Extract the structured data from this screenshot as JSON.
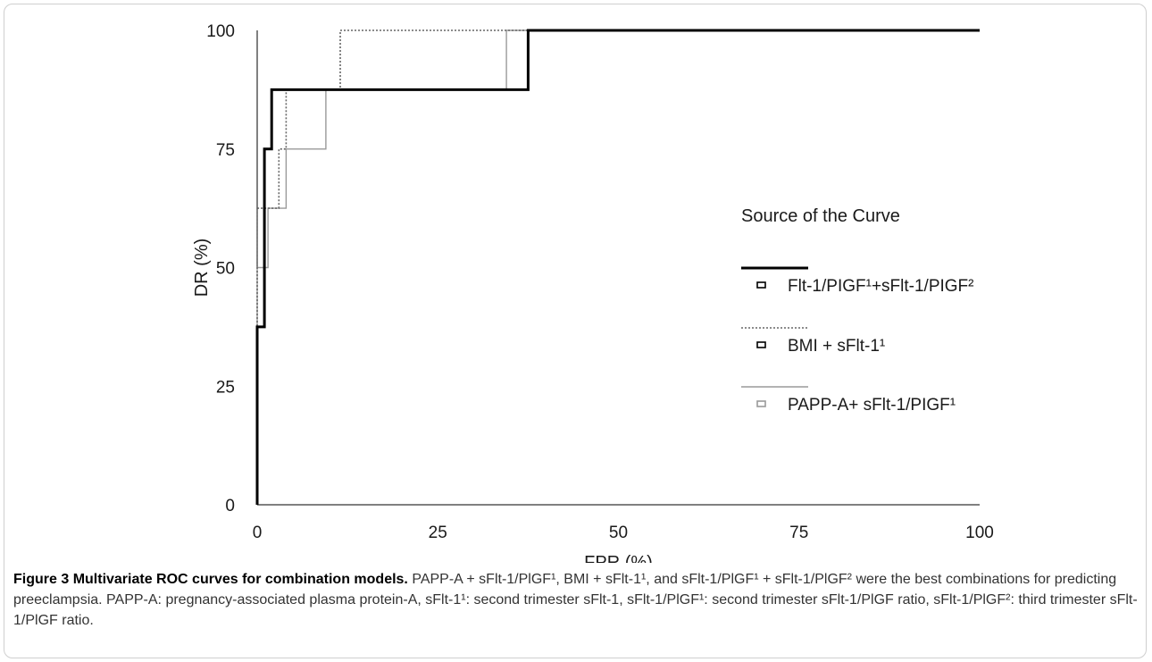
{
  "chart_data": {
    "type": "line",
    "xlabel": "FPR (%)",
    "ylabel": "DR (%)",
    "xlim": [
      0,
      100
    ],
    "ylim": [
      0,
      100
    ],
    "x_ticks": [
      "0",
      "25",
      "50",
      "75",
      "100"
    ],
    "y_ticks": [
      "0",
      "25",
      "50",
      "75",
      "100"
    ],
    "grid": false,
    "legend_title": "Source of the Curve",
    "legend_position": "right",
    "series": [
      {
        "name": "Flt-1/PIGF¹+sFlt-1/PIGF²",
        "color": "#000000",
        "line_style": "solid-thick",
        "points": [
          [
            0,
            0
          ],
          [
            0,
            37.5
          ],
          [
            1,
            37.5
          ],
          [
            1,
            75
          ],
          [
            2,
            75
          ],
          [
            2,
            87.5
          ],
          [
            37.5,
            87.5
          ],
          [
            37.5,
            100
          ],
          [
            100,
            100
          ]
        ]
      },
      {
        "name": "BMI + sFlt-1¹",
        "color": "#666666",
        "line_style": "dotted",
        "points": [
          [
            0,
            0
          ],
          [
            0,
            62.5
          ],
          [
            3,
            62.5
          ],
          [
            3,
            75
          ],
          [
            4,
            75
          ],
          [
            4,
            87.5
          ],
          [
            11.5,
            87.5
          ],
          [
            11.5,
            100
          ],
          [
            100,
            100
          ]
        ]
      },
      {
        "name": "PAPP-A+ sFlt-1/PIGF¹",
        "color": "#9a9a9a",
        "line_style": "solid-thin",
        "points": [
          [
            0,
            0
          ],
          [
            0,
            50
          ],
          [
            1.5,
            50
          ],
          [
            1.5,
            62.5
          ],
          [
            4,
            62.5
          ],
          [
            4,
            75
          ],
          [
            9.5,
            75
          ],
          [
            9.5,
            87.5
          ],
          [
            34.5,
            87.5
          ],
          [
            34.5,
            100
          ],
          [
            100,
            100
          ]
        ]
      }
    ]
  },
  "caption": {
    "figure_label": "Figure 3",
    "title": "Multivariate ROC curves for combination models.",
    "text": "PAPP-A + sFlt-1/PlGF¹, BMI + sFlt-1¹, and sFlt-1/PlGF¹ + sFlt-1/PlGF² were the best combinations for predicting preeclampsia. PAPP-A: pregnancy-associated plasma protein-A, sFlt-1¹: second trimester sFlt-1, sFlt-1/PlGF¹: second trimester sFlt-1/PlGF ratio, sFlt-1/PlGF²: third trimester sFlt-1/PlGF ratio."
  }
}
